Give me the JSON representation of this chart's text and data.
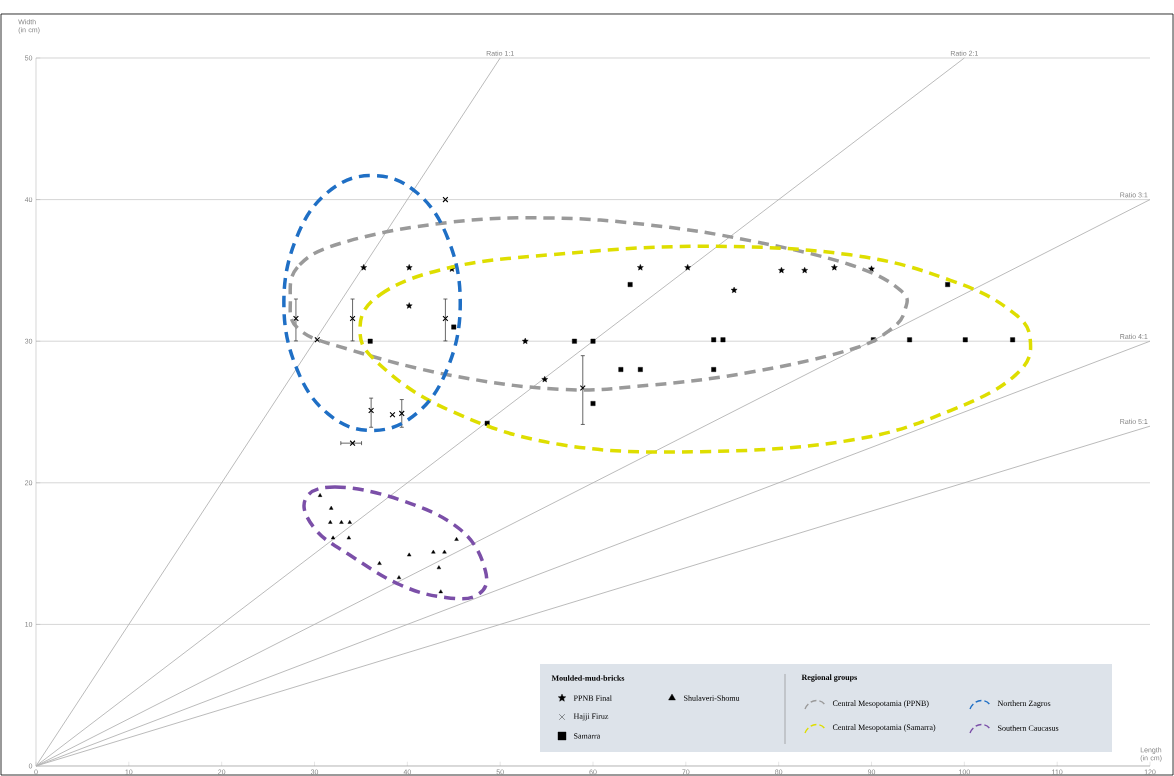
{
  "chart_data": {
    "type": "scatter",
    "xlabel": "Length (in cm)",
    "ylabel": "Width (in cm)",
    "legend_title": "Moulded-mud-bricks",
    "annotations": [
      "Regional groups",
      "Central Mesopotamia (PPNB)",
      "Central Mesopotamia (Samarra)",
      "Northern Zagros",
      "Southern Caucasus"
    ],
    "xlim": [
      0,
      120
    ],
    "ylim": [
      0,
      50
    ],
    "xticks": [
      0,
      10,
      20,
      30,
      40,
      50,
      60,
      70,
      80,
      90,
      100,
      110,
      120
    ],
    "yticks": [
      0,
      10,
      20,
      30,
      40,
      50
    ],
    "grid": "y",
    "legend": "bottom right",
    "series": [
      {
        "type": "scatter",
        "name": "PPNB Final",
        "color": "#000000",
        "marker": "star",
        "x": [
          35.3,
          40.2,
          44.8,
          40.2,
          52.7,
          54.8,
          65.1,
          70.2,
          75.2,
          80.3,
          82.8,
          86.0,
          90.0
        ],
        "values": [
          35.2,
          35.2,
          35.1,
          32.5,
          30.0,
          27.3,
          35.2,
          35.2,
          33.6,
          35.0,
          35.0,
          35.2,
          35.1
        ]
      },
      {
        "type": "scatter",
        "name": "Hajji Firuz",
        "color": "#000000",
        "marker": "cross",
        "x": [
          28.0,
          30.3,
          34.1,
          44.1,
          44.1,
          36.1,
          38.4,
          39.4,
          34.1,
          58.9
        ],
        "values": [
          31.6,
          30.1,
          31.6,
          31.6,
          40.0,
          25.1,
          24.8,
          24.9,
          22.8,
          26.7
        ],
        "errors": [
          [
            30.0,
            33.0
          ],
          null,
          [
            30.0,
            33.0
          ],
          [
            30.0,
            33.0
          ],
          null,
          [
            23.9,
            26.0
          ],
          null,
          [
            23.9,
            25.9
          ],
          null,
          [
            24.1,
            29.0
          ]
        ],
        "xerrors": [
          null,
          null,
          null,
          null,
          null,
          null,
          null,
          null,
          [
            32.8,
            35.1
          ],
          null
        ]
      },
      {
        "type": "scatter",
        "name": "Samarra",
        "color": "#000000",
        "marker": "square",
        "x": [
          36.0,
          45.0,
          48.6,
          58.0,
          60.0,
          64.0,
          63.0,
          65.1,
          73.0,
          74.0,
          73.0,
          60.0,
          90.2,
          94.1,
          98.2,
          100.1,
          105.2
        ],
        "values": [
          30.0,
          31.0,
          24.2,
          30.0,
          30.0,
          34.0,
          28.0,
          28.0,
          30.1,
          30.1,
          28.0,
          25.6,
          30.1,
          30.1,
          34.0,
          30.1,
          30.1
        ]
      },
      {
        "type": "scatter",
        "name": "Shulaveri-Shomu",
        "color": "#000000",
        "marker": "triangle",
        "x": [
          30.6,
          31.8,
          31.7,
          32.9,
          33.8,
          32.0,
          33.7,
          37.0,
          40.2,
          39.1,
          42.8,
          44.0,
          43.4,
          45.3,
          43.6
        ],
        "values": [
          19.1,
          18.2,
          17.2,
          17.2,
          17.2,
          16.1,
          16.1,
          14.3,
          14.9,
          13.3,
          15.1,
          15.1,
          14.0,
          16.0,
          12.3
        ]
      },
      {
        "type": "line",
        "name": "Ratio 1:1",
        "color": "#b3b3b3",
        "line_style": "solid",
        "x": [
          0,
          50
        ],
        "values": [
          0,
          50
        ]
      },
      {
        "type": "line",
        "name": "Ratio 2:1",
        "color": "#b3b3b3",
        "line_style": "solid",
        "x": [
          0,
          100
        ],
        "values": [
          0,
          50
        ]
      },
      {
        "type": "line",
        "name": "Ratio 3:1",
        "color": "#b3b3b3",
        "line_style": "solid",
        "x": [
          0,
          120
        ],
        "values": [
          0,
          40
        ]
      },
      {
        "type": "line",
        "name": "Ratio 4:1",
        "color": "#b3b3b3",
        "line_style": "solid",
        "x": [
          0,
          120
        ],
        "values": [
          0,
          30
        ]
      },
      {
        "type": "line",
        "name": "Ratio 5:1",
        "color": "#b3b3b3",
        "line_style": "solid",
        "x": [
          0,
          120
        ],
        "values": [
          0,
          24
        ]
      }
    ]
  }
}
